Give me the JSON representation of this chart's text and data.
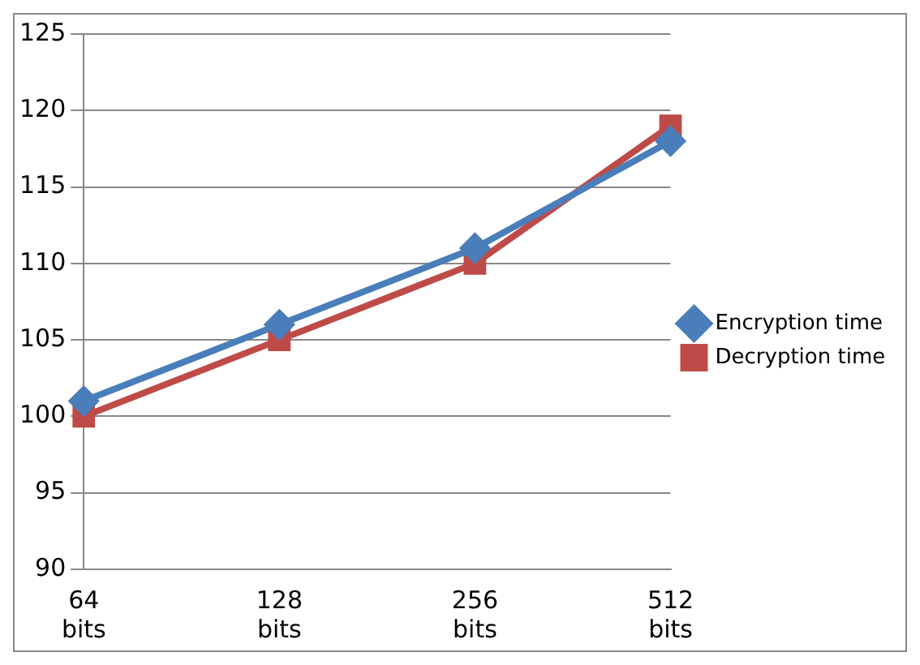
{
  "chart_data": {
    "type": "line",
    "categories": [
      "64 bits",
      "128 bits",
      "256 bits",
      "512 bits"
    ],
    "series": [
      {
        "name": "Encryption time",
        "color": "#4a7ebb",
        "values": [
          101,
          106,
          111,
          118
        ],
        "marker": "diamond"
      },
      {
        "name": "Decryption time",
        "color": "#be4b48",
        "values": [
          100,
          105,
          110,
          119
        ],
        "marker": "square"
      }
    ],
    "ylim": [
      90,
      125
    ],
    "yticks": [
      90,
      95,
      100,
      105,
      110,
      115,
      120,
      125
    ],
    "grid": "y",
    "legend": "right",
    "line_style": "solid"
  }
}
